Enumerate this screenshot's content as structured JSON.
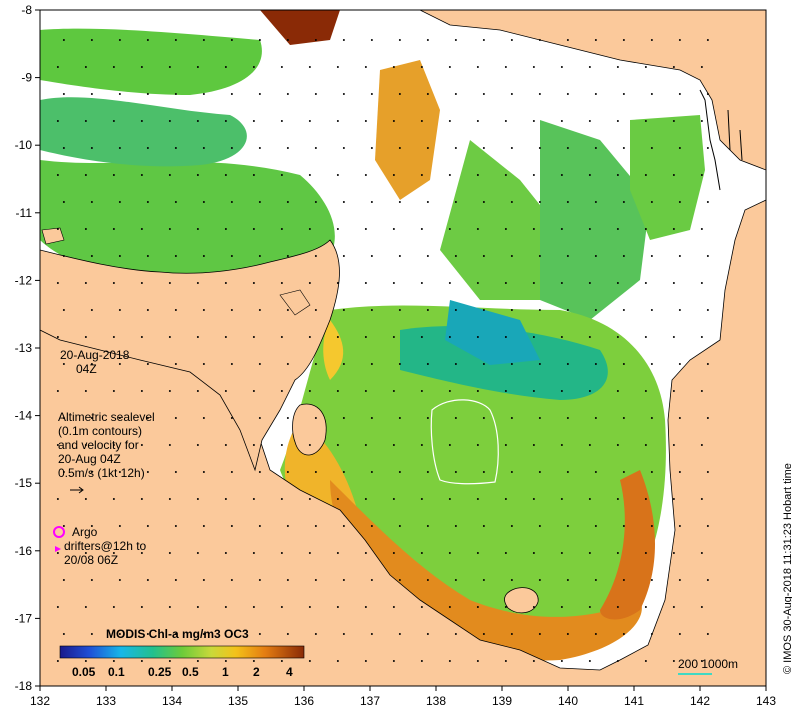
{
  "map": {
    "lon_ticks": [
      "132",
      "133",
      "134",
      "135",
      "136",
      "137",
      "138",
      "139",
      "140",
      "141",
      "142",
      "143"
    ],
    "lat_ticks": [
      "-8",
      "-9",
      "-10",
      "-11",
      "-12",
      "-13",
      "-14",
      "-15",
      "-16",
      "-17",
      "-18"
    ],
    "lon_range": [
      132,
      143
    ],
    "lat_range": [
      -18,
      -8
    ]
  },
  "date": {
    "line1": "20-Aug-2018",
    "line2": "04Z"
  },
  "sealevel_note": {
    "line1": "Altimetric sealevel",
    "line2": "(0.1m contours)",
    "line3": "and velocity for",
    "line4": "20-Aug 04Z",
    "line5": "0.5m/s (1kt 12h)"
  },
  "argo_note": {
    "line1": "Argo",
    "line2": "drifters@12h to",
    "line3": "20/08 06Z"
  },
  "colorbar": {
    "title": "MODIS Chl-a mg/m3 OC3",
    "labels": [
      "0.05",
      "0.1",
      "0.25",
      "0.5",
      "1",
      "2",
      "4"
    ]
  },
  "scale_bar": {
    "label": "200  1000m"
  },
  "credit": "© IMOS 30-Aug-2018 11:31:23 Hobart time",
  "colors": {
    "land": "#fbc99b",
    "ocean_missing": "#ffffff",
    "argo": "#ff00ff",
    "scale": "#3fd9c4"
  }
}
